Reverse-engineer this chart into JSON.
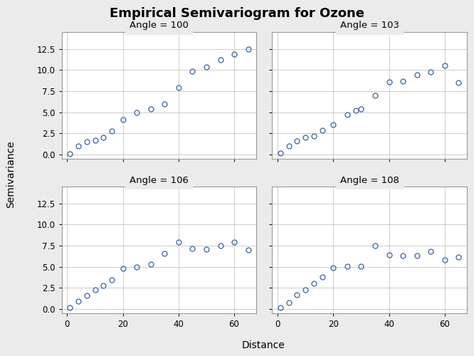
{
  "title": "Empirical Semivariogram for Ozone",
  "xlabel": "Distance",
  "ylabel": "Semivariance",
  "panels": [
    {
      "label": "Angle = 100",
      "x": [
        1,
        4,
        7,
        10,
        13,
        16,
        20,
        25,
        30,
        35,
        40,
        45,
        50,
        55,
        60,
        65
      ],
      "y": [
        0.1,
        1.0,
        1.5,
        1.7,
        2.0,
        2.8,
        4.1,
        5.0,
        5.4,
        6.0,
        7.9,
        9.9,
        10.4,
        11.2,
        11.9,
        12.5
      ]
    },
    {
      "label": "Angle = 103",
      "x": [
        1,
        4,
        7,
        10,
        13,
        16,
        20,
        25,
        28,
        30,
        35,
        40,
        45,
        50,
        55,
        60,
        65
      ],
      "y": [
        0.2,
        1.0,
        1.6,
        2.0,
        2.2,
        2.9,
        3.5,
        4.7,
        5.2,
        5.4,
        7.0,
        8.6,
        8.7,
        9.4,
        9.8,
        10.5,
        8.5
      ]
    },
    {
      "label": "Angle = 106",
      "x": [
        1,
        4,
        7,
        10,
        13,
        16,
        20,
        25,
        30,
        35,
        40,
        45,
        50,
        55,
        60,
        65
      ],
      "y": [
        0.2,
        0.9,
        1.6,
        2.3,
        2.8,
        3.5,
        4.8,
        5.0,
        5.3,
        6.6,
        7.9,
        7.2,
        7.1,
        7.5,
        7.9,
        7.0
      ]
    },
    {
      "label": "Angle = 108",
      "x": [
        1,
        4,
        7,
        10,
        13,
        16,
        20,
        25,
        30,
        35,
        40,
        45,
        50,
        55,
        60,
        65
      ],
      "y": [
        0.2,
        0.8,
        1.7,
        2.3,
        3.0,
        3.8,
        4.9,
        5.1,
        5.1,
        7.5,
        6.4,
        6.3,
        6.3,
        6.8,
        5.8,
        6.2
      ]
    }
  ],
  "ylim": [
    -0.5,
    14.5
  ],
  "xlim": [
    -2,
    68
  ],
  "yticks": [
    0.0,
    2.5,
    5.0,
    7.5,
    10.0,
    12.5
  ],
  "xticks": [
    0,
    20,
    40,
    60
  ],
  "marker_color": "#4a6fa5",
  "marker_facecolor": "none",
  "marker_size": 5,
  "marker_linewidth": 1.0,
  "grid_color": "#cccccc",
  "background_color": "#ebebeb",
  "plot_bg_color": "#ffffff",
  "title_fontsize": 13,
  "label_fontsize": 10,
  "tick_fontsize": 8.5,
  "panel_title_fontsize": 9.5
}
